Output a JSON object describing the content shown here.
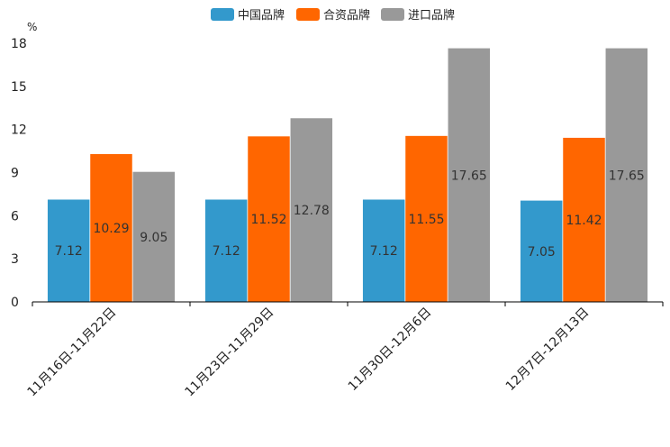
{
  "chart_data": {
    "type": "bar",
    "unit": "%",
    "categories": [
      "11月16日-11月22日",
      "11月23日-11月29日",
      "11月30日-12月6日",
      "12月7日-12月13日"
    ],
    "series": [
      {
        "name": "中国品牌",
        "color": "#3399cc",
        "values": [
          7.12,
          7.12,
          7.12,
          7.05
        ],
        "labels": [
          "7.12",
          "7.12",
          "7.12",
          "7.05"
        ]
      },
      {
        "name": "合资品牌",
        "color": "#ff6600",
        "values": [
          10.29,
          11.52,
          11.55,
          11.42
        ],
        "labels": [
          "10.29",
          "11.52",
          "11.55",
          "11.42"
        ]
      },
      {
        "name": "进口品牌",
        "color": "#999999",
        "values": [
          9.05,
          12.78,
          17.65,
          17.65
        ],
        "labels": [
          "9.05",
          "12.78",
          "17.65",
          "17.65"
        ]
      }
    ],
    "yticks": [
      "0",
      "3",
      "6",
      "9",
      "12",
      "15",
      "18"
    ],
    "ylim": [
      0,
      18
    ],
    "legend_position": "top-center",
    "grid": false
  }
}
